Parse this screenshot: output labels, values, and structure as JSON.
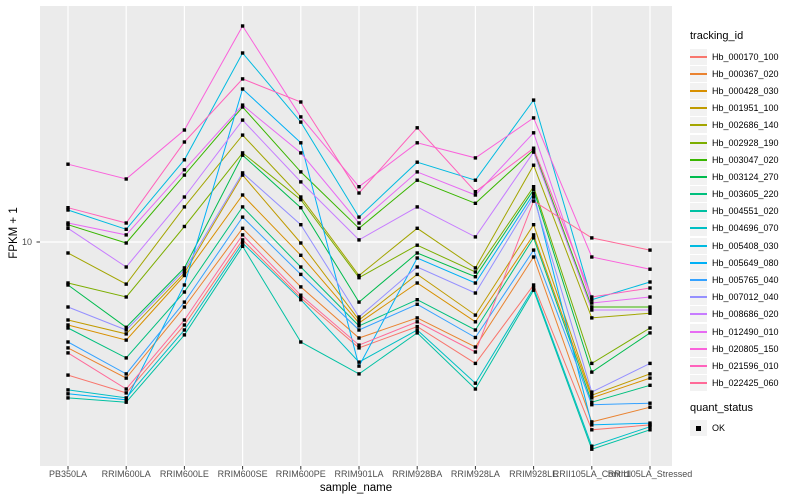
{
  "figure": {
    "background": "#FFFFFF",
    "panel_background": "#EBEBEB",
    "grid_color": "#FFFFFF",
    "axis_text_color": "#4D4D4D",
    "tick_mark_color": "#333333",
    "marker_color": "#000000"
  },
  "chart_data": {
    "type": "line",
    "title": "",
    "xlabel": "sample_name",
    "ylabel": "FPKM + 1",
    "y_scale": "log10",
    "y_tick_labels": [
      "10"
    ],
    "y_ticks": [
      10
    ],
    "ylim": [
      1.25,
      96
    ],
    "grid": "major-white-on-gray",
    "legend_position": "right",
    "point_marker": "filled-black-square",
    "series_legend_title": "tracking_id",
    "quant_status_legend": {
      "title": "quant_status",
      "entries": [
        {
          "label": "OK"
        }
      ]
    },
    "categories": [
      "PB350LA",
      "RRIM600LA",
      "RRIM600LE",
      "RRIM600SE",
      "RRIM600PE",
      "RRIM901LA",
      "RRIM928BA",
      "RRIM928LA",
      "RRIM928LE",
      "RRII105LA_Control",
      "RRII105LA_Stressed"
    ],
    "series": [
      {
        "name": "Hb_000170_100",
        "color": "#F8766D",
        "values": [
          2.79,
          2.35,
          4.51,
          10.2,
          5.85,
          3.62,
          4.44,
          3.12,
          6.62,
          1.65,
          1.73
        ]
      },
      {
        "name": "Hb_000367_020",
        "color": "#EA8331",
        "values": [
          3.62,
          2.71,
          5.36,
          11.4,
          6.5,
          3.98,
          4.83,
          3.65,
          8.66,
          1.78,
          2.05
        ]
      },
      {
        "name": "Hb_000428_030",
        "color": "#D89000",
        "values": [
          4.51,
          3.9,
          7.25,
          15.7,
          8.8,
          4.6,
          6.75,
          4.65,
          10.7,
          2.24,
          2.71
        ]
      },
      {
        "name": "Hb_001951_100",
        "color": "#C09B00",
        "values": [
          4.73,
          4.14,
          7.42,
          19.0,
          9.9,
          4.73,
          7.33,
          4.96,
          11.8,
          2.3,
          2.82
        ]
      },
      {
        "name": "Hb_002686_140",
        "color": "#A3A500",
        "values": [
          9.0,
          6.68,
          14.0,
          27.9,
          15.4,
          7.25,
          11.4,
          7.8,
          20.9,
          4.83,
          5.05
        ]
      },
      {
        "name": "Hb_002928_190",
        "color": "#7CAE00",
        "values": [
          6.75,
          5.9,
          11.6,
          23.5,
          15.0,
          7.1,
          9.7,
          7.5,
          17.0,
          3.12,
          4.38
        ]
      },
      {
        "name": "Hb_003047_020",
        "color": "#39B600",
        "values": [
          11.8,
          9.9,
          19.0,
          36.5,
          19.6,
          11.4,
          18.1,
          14.5,
          24.2,
          5.36,
          5.36
        ]
      },
      {
        "name": "Hb_003124_270",
        "color": "#00BB4E",
        "values": [
          6.62,
          4.41,
          7.8,
          23.0,
          13.9,
          5.62,
          9.0,
          7.17,
          16.5,
          2.87,
          4.18
        ]
      },
      {
        "name": "Hb_003605_220",
        "color": "#00BF7D",
        "values": [
          4.38,
          3.29,
          6.19,
          14.0,
          7.87,
          4.47,
          5.75,
          4.3,
          10.4,
          2.15,
          2.53
        ]
      },
      {
        "name": "Hb_004551_020",
        "color": "#00C1A3",
        "values": [
          2.24,
          2.15,
          4.1,
          9.6,
          3.83,
          2.82,
          4.18,
          2.44,
          6.3,
          1.37,
          1.65
        ]
      },
      {
        "name": "Hb_004696_070",
        "color": "#00BFC4",
        "values": [
          2.42,
          2.24,
          4.3,
          9.9,
          5.75,
          3.16,
          4.3,
          2.58,
          6.43,
          1.41,
          1.7
        ]
      },
      {
        "name": "Hb_005408_030",
        "color": "#00BAE0",
        "values": [
          13.6,
          11.3,
          22.0,
          61.3,
          31.6,
          12.7,
          21.5,
          18.1,
          39.0,
          5.75,
          6.81
        ]
      },
      {
        "name": "Hb_005649_080",
        "color": "#00B0F6",
        "values": [
          2.33,
          2.2,
          6.62,
          43.4,
          25.9,
          3.04,
          8.58,
          6.75,
          15.9,
          1.73,
          1.76
        ]
      },
      {
        "name": "Hb_005765_040",
        "color": "#35A2FF",
        "values": [
          3.83,
          2.82,
          5.62,
          12.7,
          7.33,
          4.3,
          5.5,
          4.0,
          9.25,
          2.1,
          2.13
        ]
      },
      {
        "name": "Hb_007012_040",
        "color": "#9590FF",
        "values": [
          5.36,
          4.3,
          7.63,
          19.4,
          11.8,
          4.87,
          7.87,
          6.13,
          15.4,
          2.37,
          3.12
        ]
      },
      {
        "name": "Hb_008686_020",
        "color": "#C77CFF",
        "values": [
          11.4,
          7.87,
          15.4,
          32.2,
          17.8,
          10.2,
          14.0,
          10.5,
          23.7,
          5.21,
          5.21
        ]
      },
      {
        "name": "Hb_012490_010",
        "color": "#E76BF3",
        "values": [
          12.0,
          10.7,
          20.0,
          37.2,
          23.5,
          12.0,
          19.6,
          15.7,
          28.5,
          5.57,
          5.9
        ]
      },
      {
        "name": "Hb_020805_150",
        "color": "#FA62DB",
        "values": [
          21.1,
          18.3,
          29.3,
          79.4,
          33.2,
          17.0,
          25.9,
          22.4,
          32.9,
          8.66,
          7.7
        ]
      },
      {
        "name": "Hb_021596_010",
        "color": "#FF62BC",
        "values": [
          13.9,
          12.0,
          26.1,
          47.8,
          38.3,
          16.0,
          29.9,
          16.2,
          24.6,
          5.9,
          6.43
        ]
      },
      {
        "name": "Hb_022425_060",
        "color": "#FF6A98",
        "values": [
          3.45,
          2.44,
          4.73,
          10.7,
          6.0,
          3.72,
          4.65,
          3.48,
          14.8,
          10.4,
          9.25
        ]
      }
    ]
  }
}
